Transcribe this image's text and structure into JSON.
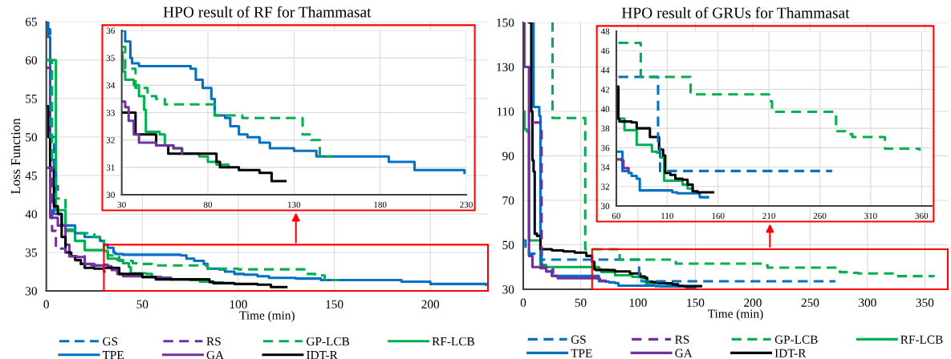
{
  "chart_data": [
    {
      "type": "step",
      "title": "HPO result of RF for Thammasat",
      "xlabel": "Time (min)",
      "ylabel": "Loss Function",
      "xlim": [
        0,
        230
      ],
      "ylim": [
        30,
        65
      ],
      "xticks": [
        0,
        50,
        100,
        150,
        200
      ],
      "yticks": [
        30,
        35,
        40,
        45,
        50,
        55,
        60,
        65
      ],
      "grid": true,
      "legend": "bottom",
      "marker": "none",
      "series": [
        {
          "name": "GS",
          "color": "#0070c0",
          "line_style": "dashed",
          "x": [
            0,
            2,
            4,
            5,
            6
          ],
          "values": [
            64,
            50,
            46,
            44,
            43
          ]
        },
        {
          "name": "RS",
          "color": "#7030a0",
          "line_style": "dashed",
          "x": [
            0,
            3,
            5,
            10,
            20,
            30,
            31
          ],
          "values": [
            46,
            37.8,
            35.5,
            34.5,
            33.3,
            32.5,
            32.5
          ]
        },
        {
          "name": "GP-LCB",
          "color": "#00b050",
          "line_style": "dashed",
          "x": [
            0,
            3,
            5,
            10,
            15,
            25,
            30,
            32,
            37,
            38,
            44,
            45,
            50,
            55,
            80,
            84,
            96,
            100,
            133,
            135,
            140,
            143,
            145,
            152
          ],
          "values": [
            60,
            47,
            42,
            38,
            37.5,
            37,
            35.4,
            34.6,
            34.6,
            33.9,
            33.9,
            33.6,
            33.5,
            33.3,
            33.3,
            32.9,
            32.9,
            32.8,
            32.8,
            32.2,
            32,
            32,
            31.4,
            31.4
          ]
        },
        {
          "name": "RF-LCB",
          "color": "#00b050",
          "line_style": "solid",
          "x": [
            0,
            5,
            8,
            10,
            15,
            20,
            30,
            32,
            37,
            40,
            43,
            44,
            52,
            55,
            60,
            65,
            75,
            80,
            85,
            92
          ],
          "values": [
            60,
            40.5,
            40.5,
            37.8,
            36.5,
            35.3,
            35.2,
            34.2,
            34,
            33.6,
            33.1,
            32.3,
            32.2,
            31.8,
            31.7,
            31.5,
            31.4,
            31.2,
            31.1,
            31
          ]
        },
        {
          "name": "TPE",
          "color": "#0070c0",
          "line_style": "solid",
          "x": [
            0,
            1,
            2,
            4,
            8,
            15,
            20,
            28,
            30,
            32,
            35,
            36,
            40,
            70,
            73,
            77,
            82,
            84,
            90,
            93,
            98,
            103,
            110,
            116,
            130,
            143,
            155,
            185,
            200,
            225,
            229
          ],
          "values": [
            65,
            63,
            47,
            40,
            38.5,
            37.5,
            37,
            36.5,
            36,
            35.6,
            35,
            34.8,
            34.7,
            34.6,
            34.2,
            33.9,
            33.5,
            32.9,
            32.8,
            32.5,
            32.2,
            32.1,
            31.9,
            31.7,
            31.6,
            31.4,
            31.4,
            31.2,
            30.9,
            30.9,
            30.8
          ]
        },
        {
          "name": "GA",
          "color": "#7030a0",
          "line_style": "solid",
          "x": [
            0,
            2,
            6,
            10,
            12,
            15,
            20,
            25,
            30,
            32,
            34,
            37,
            40,
            50,
            60,
            65
          ],
          "values": [
            59,
            39.5,
            38.5,
            36,
            34.5,
            34.4,
            33.5,
            33.3,
            33.4,
            33.2,
            32.7,
            32.2,
            31.9,
            31.8,
            31.7,
            31.5
          ]
        },
        {
          "name": "IDT-R",
          "color": "#000000",
          "line_style": "solid",
          "x": [
            0,
            1,
            2,
            4,
            6,
            8,
            10,
            13,
            15,
            18,
            20,
            25,
            30,
            36,
            38,
            49,
            50,
            57,
            84,
            85,
            87,
            98,
            110,
            117,
            125
          ],
          "values": [
            54,
            50,
            46,
            41,
            40,
            37,
            35,
            34.5,
            34,
            33.5,
            33,
            32.9,
            33,
            33,
            32.2,
            32.2,
            31.8,
            31.5,
            31.5,
            31.2,
            31,
            30.9,
            30.8,
            30.5,
            30.5
          ]
        }
      ]
    },
    {
      "type": "step",
      "xlim": [
        30,
        230
      ],
      "ylim": [
        30,
        36
      ],
      "xticks": [
        30,
        80,
        130,
        180,
        230
      ],
      "yticks": [
        30,
        31,
        32,
        33,
        34,
        35,
        36
      ],
      "grid": true,
      "marker": "none",
      "series": [
        {
          "color": "#00b050",
          "line_style": "dashed",
          "x": [
            30,
            32,
            37,
            38,
            44,
            45,
            50,
            55,
            80,
            84,
            96,
            100,
            133,
            135,
            140,
            143,
            145,
            152
          ],
          "values": [
            35.4,
            34.6,
            34.6,
            33.9,
            33.9,
            33.6,
            33.5,
            33.3,
            33.3,
            32.9,
            32.9,
            32.8,
            32.8,
            32.2,
            32,
            32,
            31.4,
            31.4
          ]
        },
        {
          "color": "#00b050",
          "line_style": "solid",
          "x": [
            30,
            30.5,
            32,
            37,
            40,
            43,
            44,
            52,
            55,
            60,
            65,
            75,
            80,
            85,
            92
          ],
          "values": [
            35.2,
            34.5,
            34.2,
            34,
            33.6,
            33.1,
            32.3,
            32.2,
            31.8,
            31.7,
            31.5,
            31.4,
            31.2,
            31.1,
            31
          ]
        },
        {
          "color": "#0070c0",
          "line_style": "solid",
          "x": [
            30,
            32,
            35,
            36,
            40,
            70,
            73,
            77,
            82,
            84,
            90,
            93,
            98,
            103,
            110,
            116,
            130,
            143,
            155,
            185,
            200,
            225,
            229
          ],
          "values": [
            36,
            35.6,
            35,
            34.8,
            34.7,
            34.6,
            34.2,
            33.9,
            33.5,
            32.9,
            32.8,
            32.5,
            32.2,
            32.1,
            31.9,
            31.7,
            31.6,
            31.4,
            31.4,
            31.2,
            30.9,
            30.9,
            30.8
          ]
        },
        {
          "color": "#000000",
          "line_style": "solid",
          "x": [
            30,
            36,
            38,
            49,
            50,
            57,
            84,
            85,
            87,
            98,
            110,
            117,
            125
          ],
          "values": [
            33,
            33,
            32.2,
            32.2,
            31.8,
            31.5,
            31.5,
            31.2,
            31,
            30.9,
            30.8,
            30.5,
            30.5
          ]
        },
        {
          "color": "#7030a0",
          "line_style": "solid",
          "x": [
            30,
            32,
            34,
            37,
            40,
            50,
            60,
            65
          ],
          "values": [
            33.4,
            33.2,
            32.7,
            32.2,
            31.9,
            31.8,
            31.7,
            31.5
          ]
        }
      ]
    },
    {
      "type": "step",
      "title": "HPO result of GRUs for Thammasat",
      "xlabel": "Time (min)",
      "xlim": [
        0,
        370
      ],
      "ylim": [
        30,
        150
      ],
      "xticks": [
        0,
        50,
        100,
        150,
        200,
        250,
        300,
        350
      ],
      "yticks": [
        30,
        50,
        70,
        90,
        110,
        130,
        150
      ],
      "grid": true,
      "legend": "bottom",
      "marker": "none",
      "series": [
        {
          "name": "GS",
          "color": "#0070c0",
          "line_style": "dashed",
          "x": [
            0,
            2,
            5,
            15,
            100,
            101,
            103,
            272
          ],
          "values": [
            52,
            48,
            46,
            43.3,
            43.3,
            36,
            33.6,
            33.6
          ]
        },
        {
          "name": "RS",
          "color": "#7030a0",
          "line_style": "dashed",
          "x": [
            8,
            15,
            16,
            25,
            26
          ],
          "values": [
            105,
            104,
            40,
            39,
            37
          ]
        },
        {
          "name": "GP-LCB",
          "color": "#00b050",
          "line_style": "dashed",
          "x": [
            25,
            25.5,
            53,
            54,
            82,
            84,
            130,
            133,
            205,
            210,
            213,
            270,
            276,
            285,
            292,
            320,
            324,
            350,
            358
          ],
          "values": [
            150,
            107,
            107,
            48,
            46.8,
            43.3,
            43.3,
            41.5,
            41.5,
            40.8,
            39.7,
            39.7,
            37.7,
            37.4,
            37.1,
            37.1,
            35.9,
            35.9,
            35.7
          ]
        },
        {
          "name": "RF-LCB",
          "color": "#00b050",
          "line_style": "solid",
          "x": [
            0,
            1,
            3,
            5,
            14,
            15,
            20,
            66,
            68,
            78,
            80,
            90,
            95,
            100,
            103,
            107,
            120,
            125,
            130,
            135
          ],
          "values": [
            110,
            102,
            101,
            52,
            52,
            41,
            40,
            39,
            37.8,
            37.8,
            36.3,
            36.3,
            35.6,
            35.5,
            35,
            32.6,
            32.6,
            32.2,
            31.8,
            31.6
          ]
        },
        {
          "name": "TPE",
          "color": "#0070c0",
          "line_style": "solid",
          "x": [
            8,
            9,
            14,
            15,
            16,
            20,
            25,
            66,
            72,
            75,
            80,
            83,
            110,
            115,
            120,
            140,
            142,
            150
          ],
          "values": [
            150,
            112,
            108,
            48,
            40,
            38,
            36,
            33.6,
            33.4,
            33.1,
            32.8,
            31.6,
            31.6,
            31.4,
            31.3,
            31.3,
            30.9,
            30.9
          ]
        },
        {
          "name": "GA",
          "color": "#7030a0",
          "line_style": "solid",
          "x": [
            0,
            1,
            5,
            8,
            15,
            20,
            25,
            30,
            65,
            67,
            72
          ],
          "values": [
            150,
            130,
            45,
            40,
            39.5,
            38,
            36,
            35,
            34.7,
            33.9,
            33.7
          ]
        },
        {
          "name": "IDT-R",
          "color": "#000000",
          "line_style": "solid",
          "x": [
            5,
            7,
            8,
            9,
            10,
            12,
            15,
            25,
            35,
            45,
            55,
            60,
            62,
            63,
            75,
            80,
            90,
            93,
            100,
            102,
            106,
            108,
            113,
            118,
            125,
            130,
            135,
            140,
            155
          ],
          "values": [
            150,
            110,
            88,
            83,
            55,
            54,
            48,
            47.5,
            47,
            46.5,
            45,
            42.3,
            39,
            38.7,
            38.6,
            38,
            38,
            37.1,
            37.1,
            35.8,
            35.2,
            33.4,
            33.2,
            32.8,
            32.7,
            32.2,
            31.5,
            31.4,
            31.4
          ]
        }
      ]
    },
    {
      "type": "step",
      "xlim": [
        60,
        370
      ],
      "ylim": [
        30,
        48
      ],
      "xticks": [
        60,
        110,
        160,
        210,
        260,
        310,
        360
      ],
      "yticks": [
        30,
        32,
        34,
        36,
        38,
        40,
        42,
        44,
        46,
        48
      ],
      "grid": true,
      "marker": "none",
      "series": [
        {
          "color": "#0070c0",
          "line_style": "dashed",
          "x": [
            62,
            100,
            101,
            103,
            272
          ],
          "values": [
            43.3,
            43.3,
            36,
            33.6,
            33.6
          ]
        },
        {
          "color": "#00b050",
          "line_style": "dashed",
          "x": [
            62,
            82,
            84,
            130,
            133,
            205,
            210,
            213,
            270,
            276,
            285,
            292,
            320,
            324,
            350,
            358
          ],
          "values": [
            46.8,
            46.8,
            43.3,
            43.3,
            41.5,
            41.5,
            40.8,
            39.7,
            39.7,
            37.7,
            37.4,
            37.1,
            37.1,
            35.9,
            35.9,
            35.7
          ]
        },
        {
          "color": "#00b050",
          "line_style": "solid",
          "x": [
            60,
            66,
            68,
            78,
            80,
            90,
            95,
            100,
            103,
            107,
            120,
            125,
            130,
            135
          ],
          "values": [
            39,
            39,
            37.8,
            37.8,
            36.3,
            36.3,
            35.6,
            35.5,
            35,
            32.6,
            32.6,
            32.2,
            31.8,
            31.6
          ]
        },
        {
          "color": "#0070c0",
          "line_style": "solid",
          "x": [
            60,
            66,
            72,
            75,
            80,
            83,
            110,
            115,
            120,
            140,
            142,
            150
          ],
          "values": [
            35.6,
            33.6,
            33.4,
            33.1,
            32.8,
            31.6,
            31.6,
            31.4,
            31.3,
            31.3,
            30.9,
            30.9
          ]
        },
        {
          "color": "#7030a0",
          "line_style": "solid",
          "x": [
            60,
            65,
            67,
            72
          ],
          "values": [
            34.8,
            34.7,
            33.9,
            33.7
          ]
        },
        {
          "color": "#000000",
          "line_style": "solid",
          "x": [
            60,
            62,
            63,
            75,
            80,
            90,
            93,
            100,
            102,
            106,
            108,
            113,
            118,
            125,
            130,
            135,
            140,
            155
          ],
          "values": [
            42.3,
            39,
            38.7,
            38.6,
            38,
            38,
            37.1,
            37.1,
            35.8,
            35.2,
            33.4,
            33.2,
            32.8,
            32.7,
            32.2,
            31.5,
            31.4,
            31.4
          ]
        }
      ]
    }
  ]
}
